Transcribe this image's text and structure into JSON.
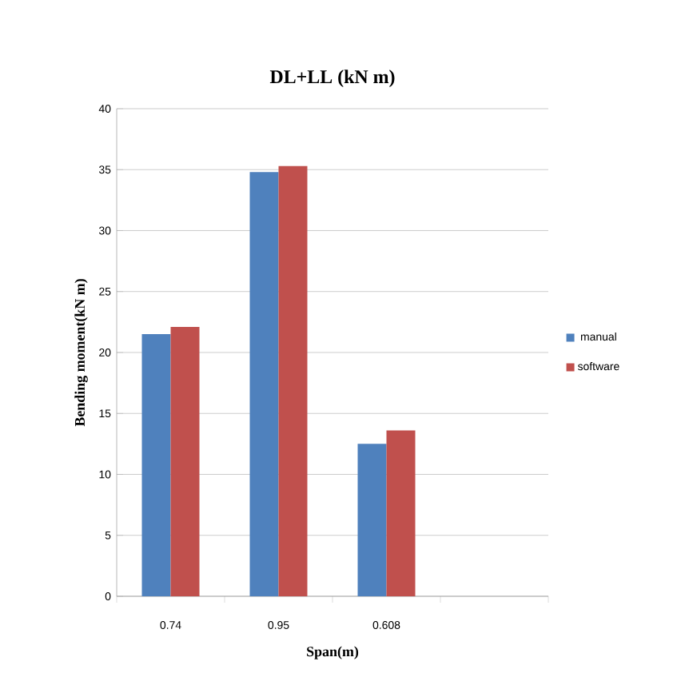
{
  "chart_data": {
    "type": "bar",
    "title": "DL+LL (kN m)",
    "xlabel": "Span(m)",
    "ylabel": "Bending  moment(kN m)",
    "categories": [
      "0.74",
      "0.95",
      "0.608",
      null
    ],
    "series": [
      {
        "name": "manual",
        "color": "#4f81bd",
        "values": [
          21.5,
          34.8,
          12.5,
          null
        ]
      },
      {
        "name": "software",
        "color": "#c0504d",
        "values": [
          22.1,
          35.3,
          13.6,
          null
        ]
      }
    ],
    "ylim": [
      0,
      40
    ],
    "yticks": [
      0,
      5,
      10,
      15,
      20,
      25,
      30,
      35,
      40
    ],
    "grid": "y",
    "legend": "right"
  }
}
